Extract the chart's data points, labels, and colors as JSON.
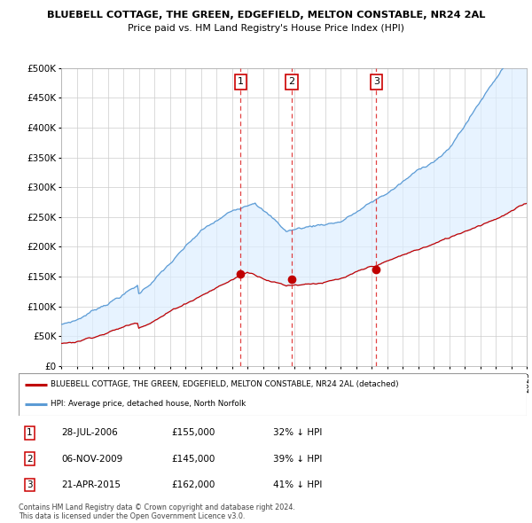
{
  "title1": "BLUEBELL COTTAGE, THE GREEN, EDGEFIELD, MELTON CONSTABLE, NR24 2AL",
  "title2": "Price paid vs. HM Land Registry's House Price Index (HPI)",
  "ytick_vals": [
    0,
    50000,
    100000,
    150000,
    200000,
    250000,
    300000,
    350000,
    400000,
    450000,
    500000
  ],
  "ytick_labels": [
    "£0",
    "£50K",
    "£100K",
    "£150K",
    "£200K",
    "£250K",
    "£300K",
    "£350K",
    "£400K",
    "£450K",
    "£500K"
  ],
  "hpi_color": "#5b9bd5",
  "price_color": "#c00000",
  "fill_color": "#ddeeff",
  "transaction_dates": [
    2006.57,
    2009.84,
    2015.31
  ],
  "transaction_prices": [
    155000,
    145000,
    162000
  ],
  "transaction_labels": [
    "1",
    "2",
    "3"
  ],
  "legend_label_red": "BLUEBELL COTTAGE, THE GREEN, EDGEFIELD, MELTON CONSTABLE, NR24 2AL (detached)",
  "legend_label_blue": "HPI: Average price, detached house, North Norfolk",
  "table_data": [
    {
      "num": "1",
      "date": "28-JUL-2006",
      "price": "£155,000",
      "pct": "32% ↓ HPI"
    },
    {
      "num": "2",
      "date": "06-NOV-2009",
      "price": "£145,000",
      "pct": "39% ↓ HPI"
    },
    {
      "num": "3",
      "date": "21-APR-2015",
      "price": "£162,000",
      "pct": "41% ↓ HPI"
    }
  ],
  "footer": "Contains HM Land Registry data © Crown copyright and database right 2024.\nThis data is licensed under the Open Government Licence v3.0.",
  "xmin": 1995,
  "xmax": 2025,
  "ymin": 0,
  "ymax": 500000,
  "bg_color": "#f0f4ff"
}
